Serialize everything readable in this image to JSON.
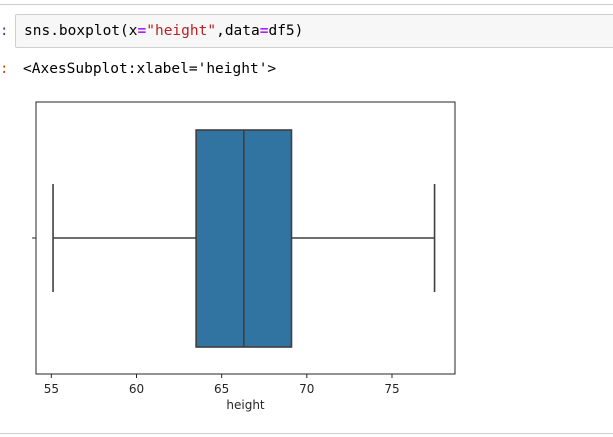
{
  "cell": {
    "in_prompt": ":",
    "out_prompt": ":",
    "code": {
      "func": "sns.boxplot",
      "open_paren": "(",
      "arg1_name": "x",
      "equals1": "=",
      "arg1_value": "\"height\"",
      "comma": ",",
      "arg2_name": "data",
      "equals2": "=",
      "arg2_value": "df5",
      "close_paren": ")"
    },
    "output_repr": "<AxesSubplot:xlabel='height'>"
  },
  "chart_data": {
    "type": "boxplot",
    "orientation": "horizontal",
    "xlabel": "height",
    "ylabel": "",
    "xlim": [
      54.1,
      78.7
    ],
    "xticks": [
      55,
      60,
      65,
      70,
      75
    ],
    "box": {
      "whisker_low": 55.1,
      "q1": 63.5,
      "median": 66.3,
      "q3": 69.1,
      "whisker_high": 77.5
    },
    "colors": {
      "box_fill": "#3274a1",
      "lines": "#3f3f3f",
      "axes": "#262626"
    }
  }
}
